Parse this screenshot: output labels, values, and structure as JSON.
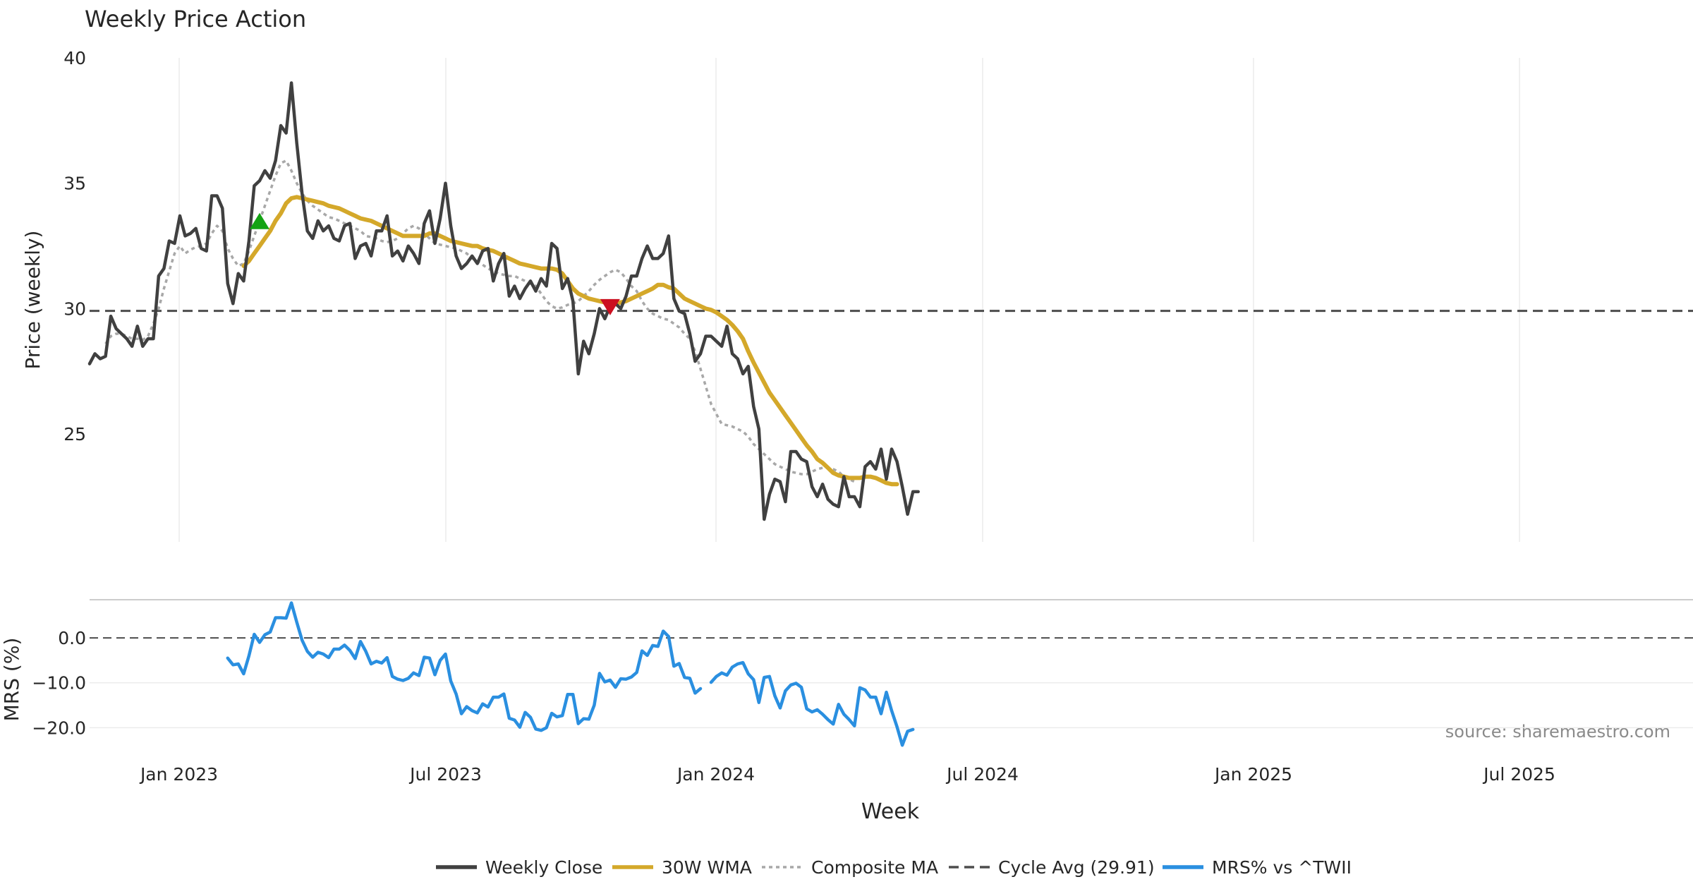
{
  "chart_data": {
    "type": "line",
    "title": "Weekly Price Action",
    "xlabel": "Week",
    "source": "source: sharemaestro.com",
    "x_ticks": [
      "Jan 2023",
      "Jul 2023",
      "Jan 2024",
      "Jul 2024",
      "Jan 2025",
      "Jul 2025"
    ],
    "price_panel": {
      "ylabel": "Price (weekly)",
      "ylim": [
        20.7,
        40.0
      ],
      "yticks": [
        "25",
        "30",
        "35",
        "40"
      ],
      "cycle_avg": 29.91,
      "close": [
        27.8,
        28.2,
        28.0,
        28.1,
        29.7,
        29.2,
        29.0,
        28.8,
        28.5,
        29.3,
        28.5,
        28.8,
        28.8,
        31.3,
        31.6,
        32.7,
        32.6,
        33.7,
        32.9,
        33.0,
        33.2,
        32.4,
        32.3,
        34.5,
        34.5,
        34.0,
        31.0,
        30.2,
        31.4,
        31.1,
        32.7,
        34.9,
        35.1,
        35.5,
        35.2,
        35.9,
        37.3,
        37.0,
        39.0,
        36.6,
        34.6,
        33.1,
        32.8,
        33.5,
        33.1,
        33.3,
        32.8,
        32.7,
        33.3,
        33.4,
        32.0,
        32.5,
        32.6,
        32.1,
        33.1,
        33.1,
        33.7,
        32.1,
        32.3,
        31.9,
        32.5,
        32.2,
        31.8,
        33.4,
        33.9,
        32.6,
        33.6,
        35.0,
        33.3,
        32.1,
        31.6,
        31.8,
        32.1,
        31.8,
        32.3,
        32.4,
        31.1,
        31.8,
        32.2,
        30.5,
        30.9,
        30.4,
        30.8,
        31.1,
        30.7,
        31.2,
        30.9,
        32.6,
        32.4,
        30.8,
        31.2,
        30.3,
        27.4,
        28.7,
        28.2,
        29.0,
        30.0,
        29.6,
        30.1,
        30.2,
        30.0,
        30.5,
        31.3,
        31.3,
        32.0,
        32.5,
        32.0,
        32.0,
        32.2,
        32.9,
        30.4,
        29.9,
        29.8,
        29.0,
        27.9,
        28.2,
        28.9,
        28.9,
        28.7,
        28.5,
        29.3,
        28.2,
        28.0,
        27.4,
        27.7,
        26.1,
        25.2,
        21.6,
        22.6,
        23.2,
        23.1,
        22.3,
        24.3,
        24.3,
        24.0,
        23.9,
        22.9,
        22.5,
        23.0,
        22.4,
        22.2,
        22.1,
        23.3,
        22.5,
        22.5,
        22.1,
        23.7,
        23.9,
        23.6,
        24.4,
        23.2,
        24.4,
        23.9,
        22.9,
        21.8,
        22.7,
        22.7
      ],
      "wma_30w_start": 29,
      "wma_30w": [
        31.7,
        31.9,
        32.2,
        32.5,
        32.8,
        33.1,
        33.5,
        33.8,
        34.2,
        34.4,
        34.45,
        34.4,
        34.35,
        34.3,
        34.25,
        34.2,
        34.1,
        34.05,
        34.0,
        33.9,
        33.8,
        33.7,
        33.6,
        33.55,
        33.5,
        33.4,
        33.3,
        33.2,
        33.1,
        33.0,
        32.9,
        32.9,
        32.9,
        32.9,
        32.9,
        33.0,
        33.0,
        32.9,
        32.8,
        32.7,
        32.65,
        32.6,
        32.55,
        32.5,
        32.5,
        32.4,
        32.35,
        32.3,
        32.2,
        32.1,
        32.0,
        31.9,
        31.8,
        31.75,
        31.7,
        31.65,
        31.6,
        31.6,
        31.6,
        31.55,
        31.4,
        31.1,
        30.8,
        30.6,
        30.5,
        30.4,
        30.35,
        30.3,
        30.25,
        30.2,
        30.2,
        30.25,
        30.3,
        30.4,
        30.5,
        30.6,
        30.7,
        30.8,
        30.95,
        30.95,
        30.85,
        30.8,
        30.6,
        30.4,
        30.3,
        30.2,
        30.1,
        30.0,
        29.95,
        29.85,
        29.7,
        29.55,
        29.35,
        29.1,
        28.8,
        28.3,
        27.85,
        27.45,
        27.05,
        26.65,
        26.35,
        26.05,
        25.75,
        25.45,
        25.15,
        24.85,
        24.55,
        24.3,
        24.0,
        23.85,
        23.65,
        23.45,
        23.35,
        23.3,
        23.25,
        23.25,
        23.25,
        23.3,
        23.3,
        23.25,
        23.15,
        23.05,
        23.0,
        23.0
      ],
      "composite_ma_start": 3,
      "composite_ma": [
        28.6,
        28.9,
        29.0,
        29.0,
        28.9,
        28.8,
        28.8,
        28.75,
        28.9,
        29.4,
        30.0,
        30.8,
        31.5,
        32.2,
        32.5,
        32.2,
        32.35,
        32.45,
        32.5,
        32.6,
        33.0,
        33.3,
        33.1,
        32.4,
        32.0,
        31.7,
        31.8,
        32.3,
        32.9,
        33.5,
        34.1,
        34.7,
        35.3,
        35.8,
        35.9,
        35.5,
        35.0,
        34.6,
        34.3,
        34.1,
        33.95,
        33.8,
        33.65,
        33.6,
        33.5,
        33.4,
        33.3,
        33.2,
        33.1,
        32.9,
        32.85,
        32.8,
        32.7,
        32.65,
        32.7,
        32.8,
        33.0,
        33.2,
        33.3,
        33.2,
        33.0,
        32.8,
        32.6,
        32.55,
        32.5,
        32.45,
        32.4,
        32.3,
        32.2,
        32.0,
        31.9,
        31.75,
        31.6,
        31.5,
        31.4,
        31.35,
        31.3,
        31.3,
        31.2,
        31.1,
        31.0,
        30.9,
        30.6,
        30.3,
        30.1,
        30.0,
        30.05,
        30.15,
        30.2,
        30.3,
        30.5,
        30.7,
        30.95,
        31.15,
        31.3,
        31.45,
        31.55,
        31.45,
        31.2,
        30.9,
        30.7,
        30.3,
        30.0,
        29.8,
        29.7,
        29.6,
        29.55,
        29.4,
        29.25,
        29.0,
        28.8,
        28.3,
        27.6,
        26.9,
        26.2,
        25.8,
        25.4,
        25.35,
        25.3,
        25.2,
        25.1,
        24.9,
        24.6,
        24.4,
        24.2,
        24.0,
        23.8,
        23.7,
        23.6,
        23.5,
        23.45,
        23.4,
        23.4,
        23.5,
        23.6,
        23.65,
        23.65,
        23.6,
        23.5,
        23.3,
        23.2,
        23.1
      ],
      "signals": [
        {
          "type": "buy",
          "index": 32,
          "value": 33.45,
          "color": "#14a314"
        },
        {
          "type": "sell",
          "index": 98,
          "value": 30.1,
          "color": "#cc1020"
        }
      ]
    },
    "mrs_panel": {
      "ylabel": "MRS (%)",
      "ylim": [
        -24.5,
        8.5
      ],
      "yticks": [
        "0.0",
        "−10.0",
        "−20.0"
      ],
      "zero_line": 0,
      "mrs_start": 26,
      "mrs": [
        -4.5,
        -6,
        -5.8,
        -8,
        -4,
        0.8,
        -1,
        0.7,
        1.3,
        4.5,
        4.5,
        4.4,
        7.8,
        3.5,
        -0.5,
        -3,
        -4.3,
        -3.2,
        -3.6,
        -4.4,
        -2.5,
        -2.5,
        -1.6,
        -2.8,
        -4.6,
        -0.8,
        -3,
        -5.8,
        -5.2,
        -5.6,
        -4.4,
        -8.6,
        -9.2,
        -9.5,
        -9,
        -7.8,
        -8.4,
        -4.3,
        -4.5,
        -8.2,
        -5,
        -3.6,
        -9.6,
        -12.5,
        -16.9,
        -15.3,
        -16.2,
        -16.7,
        -14.7,
        -15.4,
        -13.2,
        -13.2,
        -12.5,
        -17.9,
        -18.3,
        -19.9,
        -16.6,
        -17.7,
        -20.3,
        -20.6,
        -20,
        -16.8,
        -17.6,
        -17.3,
        -12.6,
        -12.6,
        -19.1,
        -18,
        -18.1,
        -15,
        -7.9,
        -9.8,
        -9.4,
        -11,
        -9.1,
        -9.2,
        -8.7,
        -7.7,
        -2.9,
        -3.9,
        -1.7,
        -1.9,
        1.5,
        0.3,
        -6.3,
        -5.7,
        -8.8,
        -9,
        -12.3,
        -11.3,
        null,
        -9.9,
        -8.6,
        -7.8,
        -8.3,
        -6.5,
        -5.8,
        -5.5,
        -8,
        -9.3,
        -14.4,
        -8.8,
        -8.6,
        -12.9,
        -15.6,
        -11.8,
        -10.5,
        -10.1,
        -11,
        -15.8,
        -16.5,
        -16,
        -17,
        -18.2,
        -19.2,
        -14.8,
        -17,
        -18.2,
        -19.6,
        -11.1,
        -11.6,
        -13.2,
        -13.2,
        -16.9,
        -12.1,
        -16.2,
        -19.8,
        -23.9,
        -20.8,
        -20.4
      ]
    },
    "legend": [
      {
        "label": "Weekly Close",
        "color": "#404040",
        "style": "solid"
      },
      {
        "label": "30W WMA",
        "color": "#d4a82a",
        "style": "solid"
      },
      {
        "label": "Composite MA",
        "color": "#a8a8a8",
        "style": "dotted"
      },
      {
        "label": "Cycle Avg (29.91)",
        "color": "#4d4d4d",
        "style": "dashed"
      },
      {
        "label": "MRS% vs ^TWII",
        "color": "#2a8fe0",
        "style": "solid"
      }
    ]
  }
}
